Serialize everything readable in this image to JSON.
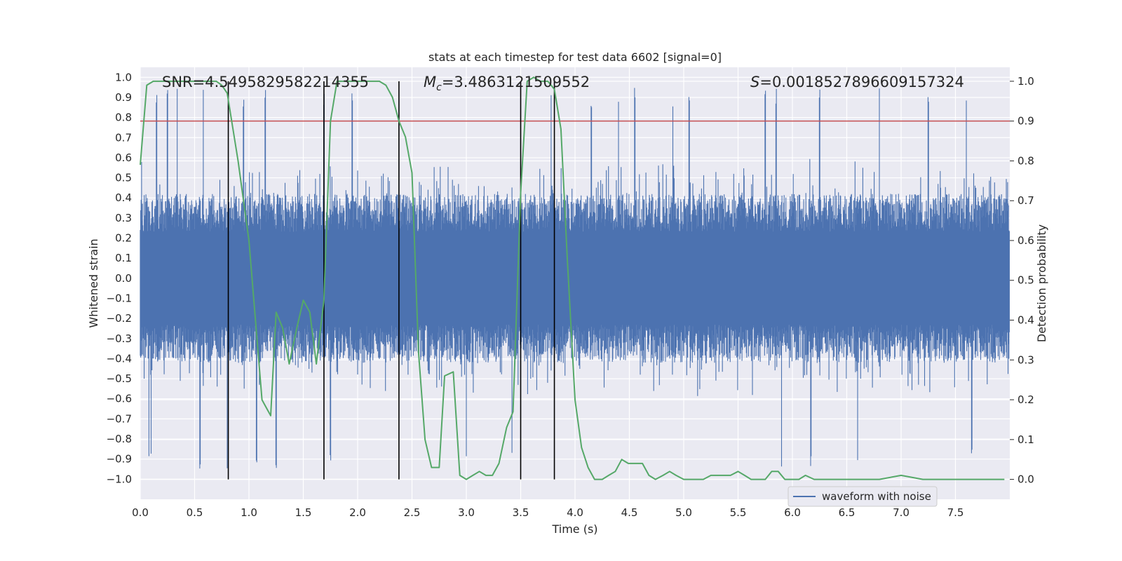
{
  "chart_data": {
    "type": "line",
    "title": "stats at each timestep for test data 6602 [signal=0]",
    "xlabel": "Time (s)",
    "ylabel_left": "Whitened strain",
    "ylabel_right": "Detection probability",
    "xlim": [
      0,
      8.0
    ],
    "ylim_left": [
      -1.1,
      1.05
    ],
    "ylim_right": [
      -0.05,
      1.035
    ],
    "x_ticks": [
      "0.0",
      "0.5",
      "1.0",
      "1.5",
      "2.0",
      "2.5",
      "3.0",
      "3.5",
      "4.0",
      "4.5",
      "5.0",
      "5.5",
      "6.0",
      "6.5",
      "7.0",
      "7.5"
    ],
    "y_left_ticks": [
      "1.0",
      "0.9",
      "0.8",
      "0.7",
      "0.6",
      "0.5",
      "0.4",
      "0.3",
      "0.2",
      "0.1",
      "0.0",
      "-0.1",
      "-0.2",
      "-0.3",
      "-0.4",
      "-0.5",
      "-0.6",
      "-0.7",
      "-0.8",
      "-0.9",
      "-1.0"
    ],
    "y_right_ticks": [
      "1.0",
      "0.9",
      "0.8",
      "0.7",
      "0.6",
      "0.5",
      "0.4",
      "0.3",
      "0.2",
      "0.1",
      "0.0"
    ],
    "annotations": {
      "snr": "SNR=4.5495829582214355",
      "mc_symbol": "M",
      "mc_sub": "c",
      "mc_value": "=3.4863121509552",
      "s_symbol": "S",
      "s_value": "=0.0018527896609157324"
    },
    "threshold": {
      "value": 0.9,
      "axis": "right",
      "color": "#c44e52"
    },
    "vertical_lines": [
      0.81,
      1.69,
      2.38,
      3.5,
      3.81
    ],
    "waveform": {
      "name": "waveform with noise",
      "color": "#4c72b0",
      "envelope_amplitude": 0.42,
      "outlier_peaks_x": [
        0.15,
        0.25,
        0.34,
        0.58,
        0.95,
        1.15,
        1.69,
        1.95,
        2.38,
        3.78,
        4.15,
        4.4,
        4.55,
        4.9,
        5.05,
        5.75,
        5.85,
        6.25,
        6.8,
        7.25,
        7.6
      ],
      "outlier_troughs_x": [
        0.08,
        0.1,
        0.55,
        0.8,
        1.07,
        1.25,
        1.75,
        3.0,
        3.42,
        5.9,
        6.17,
        6.6,
        7.65
      ]
    },
    "probability": {
      "name": "detection probability",
      "color": "#55a868",
      "x": [
        0.0,
        0.06,
        0.12,
        0.2,
        0.4,
        0.6,
        0.7,
        0.75,
        0.8,
        0.9,
        1.0,
        1.06,
        1.12,
        1.2,
        1.25,
        1.31,
        1.37,
        1.44,
        1.5,
        1.56,
        1.62,
        1.69,
        1.75,
        1.81,
        1.9,
        2.0,
        2.1,
        2.2,
        2.26,
        2.32,
        2.38,
        2.44,
        2.5,
        2.56,
        2.62,
        2.68,
        2.75,
        2.8,
        2.88,
        2.94,
        3.0,
        3.06,
        3.12,
        3.18,
        3.24,
        3.3,
        3.37,
        3.43,
        3.5,
        3.56,
        3.62,
        3.68,
        3.75,
        3.81,
        3.87,
        3.93,
        4.0,
        4.06,
        4.12,
        4.18,
        4.25,
        4.31,
        4.37,
        4.43,
        4.49,
        4.56,
        4.62,
        4.68,
        4.74,
        4.81,
        4.87,
        4.93,
        5.0,
        5.06,
        5.12,
        5.18,
        5.25,
        5.31,
        5.37,
        5.43,
        5.5,
        5.56,
        5.62,
        5.68,
        5.75,
        5.81,
        5.87,
        5.93,
        6.0,
        6.06,
        6.12,
        6.2,
        6.4,
        6.6,
        6.8,
        7.0,
        7.2,
        7.4,
        7.6,
        7.8,
        7.95
      ],
      "y": [
        0.79,
        0.99,
        1.0,
        1.0,
        1.0,
        1.0,
        1.0,
        0.99,
        0.97,
        0.8,
        0.6,
        0.4,
        0.2,
        0.16,
        0.42,
        0.38,
        0.29,
        0.38,
        0.45,
        0.42,
        0.29,
        0.45,
        0.9,
        1.0,
        1.0,
        1.0,
        1.0,
        1.0,
        0.99,
        0.96,
        0.9,
        0.86,
        0.77,
        0.32,
        0.1,
        0.03,
        0.03,
        0.26,
        0.27,
        0.01,
        0.0,
        0.01,
        0.02,
        0.01,
        0.01,
        0.04,
        0.13,
        0.17,
        0.72,
        1.0,
        1.01,
        1.0,
        1.0,
        0.98,
        0.88,
        0.55,
        0.2,
        0.08,
        0.03,
        0.0,
        0.0,
        0.01,
        0.02,
        0.05,
        0.04,
        0.04,
        0.04,
        0.01,
        0.0,
        0.01,
        0.02,
        0.01,
        0.0,
        0.0,
        0.0,
        0.0,
        0.01,
        0.01,
        0.01,
        0.01,
        0.02,
        0.01,
        0.0,
        0.0,
        0.0,
        0.02,
        0.02,
        0.0,
        0.0,
        0.0,
        0.01,
        0.0,
        0.0,
        0.0,
        0.0,
        0.01,
        0.0,
        0.0,
        0.0,
        0.0,
        0.0
      ]
    },
    "legend": {
      "label": "waveform with noise",
      "placement": "lower-right"
    }
  }
}
